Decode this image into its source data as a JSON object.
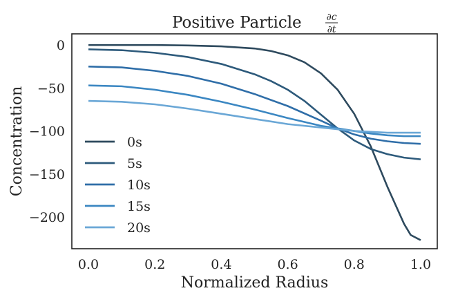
{
  "chart_data": {
    "type": "line",
    "title": "Positive Particle",
    "title_math": {
      "numerator": "∂c",
      "denominator": "∂t"
    },
    "xlabel": "Normalized Radius",
    "ylabel": "Concentration",
    "xlim": [
      -0.05,
      1.05
    ],
    "ylim": [
      -237,
      13
    ],
    "xticks": [
      0.0,
      0.2,
      0.4,
      0.6,
      0.8,
      1.0
    ],
    "xtick_labels": [
      "0.0",
      "0.2",
      "0.4",
      "0.6",
      "0.8",
      "1.0"
    ],
    "yticks": [
      0,
      -50,
      -100,
      -150,
      -200
    ],
    "ytick_labels": [
      "0",
      "−50",
      "−100",
      "−150",
      "−200"
    ],
    "grid": false,
    "legend_position": "lower-left",
    "series": [
      {
        "name": "0s",
        "color": "#2e4a5e",
        "x": [
          0.0,
          0.1,
          0.2,
          0.3,
          0.4,
          0.5,
          0.55,
          0.6,
          0.65,
          0.7,
          0.75,
          0.8,
          0.85,
          0.9,
          0.95,
          0.97,
          1.0
        ],
        "y": [
          0,
          0,
          0,
          -0.5,
          -1.5,
          -4,
          -7,
          -12,
          -20,
          -33,
          -52,
          -80,
          -118,
          -165,
          -208,
          -221,
          -227
        ]
      },
      {
        "name": "5s",
        "color": "#2d5a7b",
        "x": [
          0.0,
          0.1,
          0.2,
          0.3,
          0.4,
          0.5,
          0.55,
          0.6,
          0.65,
          0.7,
          0.75,
          0.8,
          0.85,
          0.9,
          0.95,
          1.0
        ],
        "y": [
          -5,
          -6,
          -9,
          -14,
          -22,
          -34,
          -42,
          -52,
          -65,
          -81,
          -97,
          -111,
          -121,
          -127,
          -131,
          -133
        ]
      },
      {
        "name": "10s",
        "color": "#2f6ea8",
        "x": [
          0.0,
          0.1,
          0.2,
          0.3,
          0.4,
          0.5,
          0.6,
          0.7,
          0.75,
          0.8,
          0.85,
          0.9,
          0.95,
          1.0
        ],
        "y": [
          -25,
          -26,
          -30,
          -36,
          -45,
          -57,
          -71,
          -88,
          -97,
          -104,
          -109,
          -112,
          -114,
          -115
        ]
      },
      {
        "name": "15s",
        "color": "#3b87c2",
        "x": [
          0.0,
          0.1,
          0.2,
          0.3,
          0.4,
          0.5,
          0.6,
          0.7,
          0.75,
          0.8,
          0.85,
          0.9,
          0.95,
          1.0
        ],
        "y": [
          -47,
          -48,
          -52,
          -58,
          -66,
          -75,
          -85,
          -94,
          -97,
          -100,
          -103,
          -105,
          -106,
          -106
        ]
      },
      {
        "name": "20s",
        "color": "#6aa7d6",
        "x": [
          0.0,
          0.1,
          0.2,
          0.3,
          0.4,
          0.5,
          0.6,
          0.7,
          0.75,
          0.8,
          0.85,
          0.9,
          0.95,
          1.0
        ],
        "y": [
          -65,
          -66,
          -69,
          -74,
          -80,
          -86,
          -92,
          -96,
          -98,
          -100,
          -101,
          -102,
          -102,
          -102
        ]
      }
    ]
  }
}
